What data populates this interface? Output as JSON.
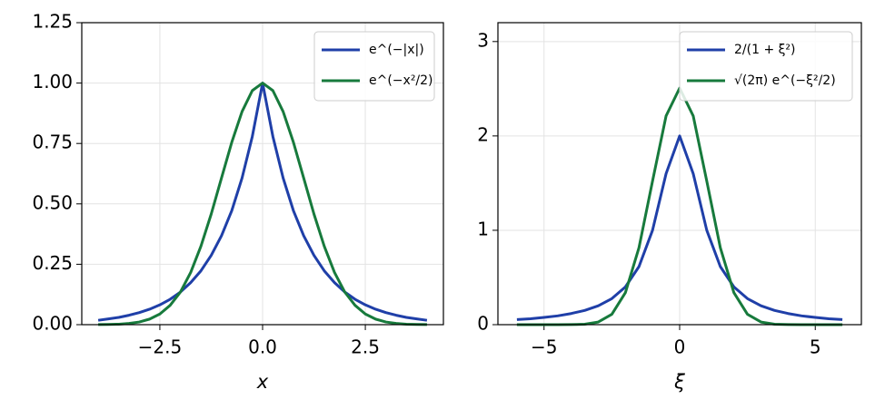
{
  "chart_data": [
    {
      "type": "line",
      "xlabel": "x",
      "x": [
        -4,
        -3.75,
        -3.5,
        -3.25,
        -3,
        -2.75,
        -2.5,
        -2.25,
        -2,
        -1.75,
        -1.5,
        -1.25,
        -1,
        -0.75,
        -0.5,
        -0.25,
        0,
        0.25,
        0.5,
        0.75,
        1,
        1.25,
        1.5,
        1.75,
        2,
        2.25,
        2.5,
        2.75,
        3,
        3.25,
        3.5,
        3.75,
        4
      ],
      "series": [
        {
          "name": "e^(−|x|)",
          "color": "#1f3fa8",
          "values": [
            0.018,
            0.024,
            0.03,
            0.039,
            0.05,
            0.064,
            0.082,
            0.105,
            0.135,
            0.174,
            0.223,
            0.287,
            0.368,
            0.472,
            0.607,
            0.779,
            1,
            0.779,
            0.607,
            0.472,
            0.368,
            0.287,
            0.223,
            0.174,
            0.135,
            0.105,
            0.082,
            0.064,
            0.05,
            0.039,
            0.03,
            0.024,
            0.018
          ]
        },
        {
          "name": "e^(−x²/2)",
          "color": "#177a3c",
          "values": [
            0.0003,
            0.001,
            0.002,
            0.005,
            0.011,
            0.023,
            0.044,
            0.08,
            0.135,
            0.216,
            0.325,
            0.458,
            0.607,
            0.755,
            0.882,
            0.969,
            1,
            0.969,
            0.882,
            0.755,
            0.607,
            0.458,
            0.325,
            0.216,
            0.135,
            0.08,
            0.044,
            0.023,
            0.011,
            0.005,
            0.002,
            0.001,
            0.0003
          ]
        }
      ],
      "xlim": [
        -4.4,
        4.4
      ],
      "xticks": [
        -2.5,
        0.0,
        2.5
      ],
      "ylim": [
        0,
        1.25
      ],
      "yticks": [
        {
          "value": 0,
          "label": "0.00"
        },
        {
          "value": 0.25,
          "label": "0.25"
        },
        {
          "value": 0.5,
          "label": "0.50"
        },
        {
          "value": 0.75,
          "label": "0.75"
        },
        {
          "value": 1,
          "label": "1.00"
        },
        {
          "value": 1.25,
          "label": "1.25"
        }
      ],
      "xtick_labels": [
        "−2.5",
        "0.0",
        "2.5"
      ],
      "grid": true,
      "legend": "upper right"
    },
    {
      "type": "line",
      "xlabel": "ξ",
      "x": [
        -6,
        -5.5,
        -5,
        -4.5,
        -4,
        -3.5,
        -3,
        -2.5,
        -2,
        -1.5,
        -1,
        -0.5,
        0,
        0.5,
        1,
        1.5,
        2,
        2.5,
        3,
        3.5,
        4,
        4.5,
        5,
        5.5,
        6
      ],
      "series": [
        {
          "name": "2/(1 + ξ²)",
          "color": "#1f3fa8",
          "values": [
            0.054,
            0.062,
            0.077,
            0.093,
            0.118,
            0.151,
            0.2,
            0.276,
            0.4,
            0.615,
            1,
            1.6,
            2,
            1.6,
            1,
            0.615,
            0.4,
            0.276,
            0.2,
            0.151,
            0.118,
            0.093,
            0.077,
            0.062,
            0.054
          ]
        },
        {
          "name": "√(2π) e^(−ξ²/2)",
          "color": "#177a3c",
          "values": [
            0,
            0,
            0,
            0,
            0.001,
            0.005,
            0.028,
            0.11,
            0.339,
            0.815,
            1.521,
            2.212,
            2.507,
            2.212,
            1.521,
            0.815,
            0.339,
            0.11,
            0.028,
            0.005,
            0.001,
            0,
            0,
            0,
            0
          ]
        }
      ],
      "xlim": [
        -6.7,
        6.7
      ],
      "xticks": [
        -5,
        0,
        5
      ],
      "xtick_labels": [
        "−5",
        "0",
        "5"
      ],
      "ylim": [
        0,
        3.2
      ],
      "yticks": [
        0,
        1,
        2,
        3
      ],
      "grid": true,
      "legend": "upper right"
    }
  ]
}
